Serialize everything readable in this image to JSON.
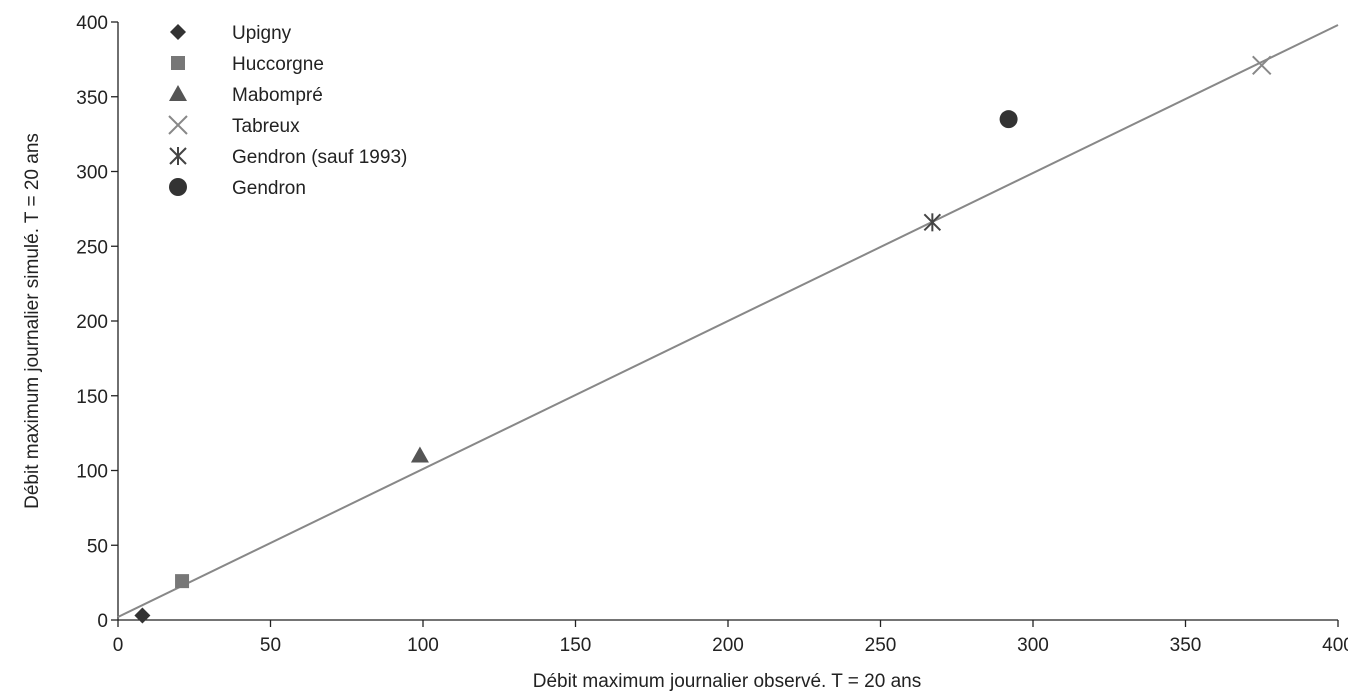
{
  "chart_data": {
    "type": "scatter",
    "title": "",
    "xlabel": "Débit maximum journalier observé. T = 20 ans",
    "ylabel": "Débit maximum journalier simulé. T = 20 ans",
    "xlim": [
      0,
      400
    ],
    "ylim": [
      0,
      400
    ],
    "xticks": [
      0,
      50,
      100,
      150,
      200,
      250,
      300,
      350,
      400
    ],
    "yticks": [
      0,
      50,
      100,
      150,
      200,
      250,
      300,
      350,
      400
    ],
    "grid": false,
    "legend_position": "top-left",
    "series": [
      {
        "name": "Upigny",
        "marker": "diamond",
        "color": "#333333",
        "points": [
          [
            8,
            3
          ]
        ]
      },
      {
        "name": "Huccorgne",
        "marker": "square",
        "color": "#777777",
        "points": [
          [
            21,
            26
          ]
        ]
      },
      {
        "name": "Mabompré",
        "marker": "triangle",
        "color": "#555555",
        "points": [
          [
            99,
            110
          ]
        ]
      },
      {
        "name": "Tabreux",
        "marker": "x",
        "color": "#888888",
        "points": [
          [
            375,
            371
          ]
        ]
      },
      {
        "name": "Gendron (sauf 1993)",
        "marker": "asterisk",
        "color": "#444444",
        "points": [
          [
            267,
            266
          ]
        ]
      },
      {
        "name": "Gendron",
        "marker": "circle",
        "color": "#333333",
        "points": [
          [
            292,
            335
          ]
        ]
      }
    ],
    "reference_line": {
      "color": "#888888",
      "x": [
        0,
        400
      ],
      "y": [
        2,
        398
      ]
    }
  }
}
